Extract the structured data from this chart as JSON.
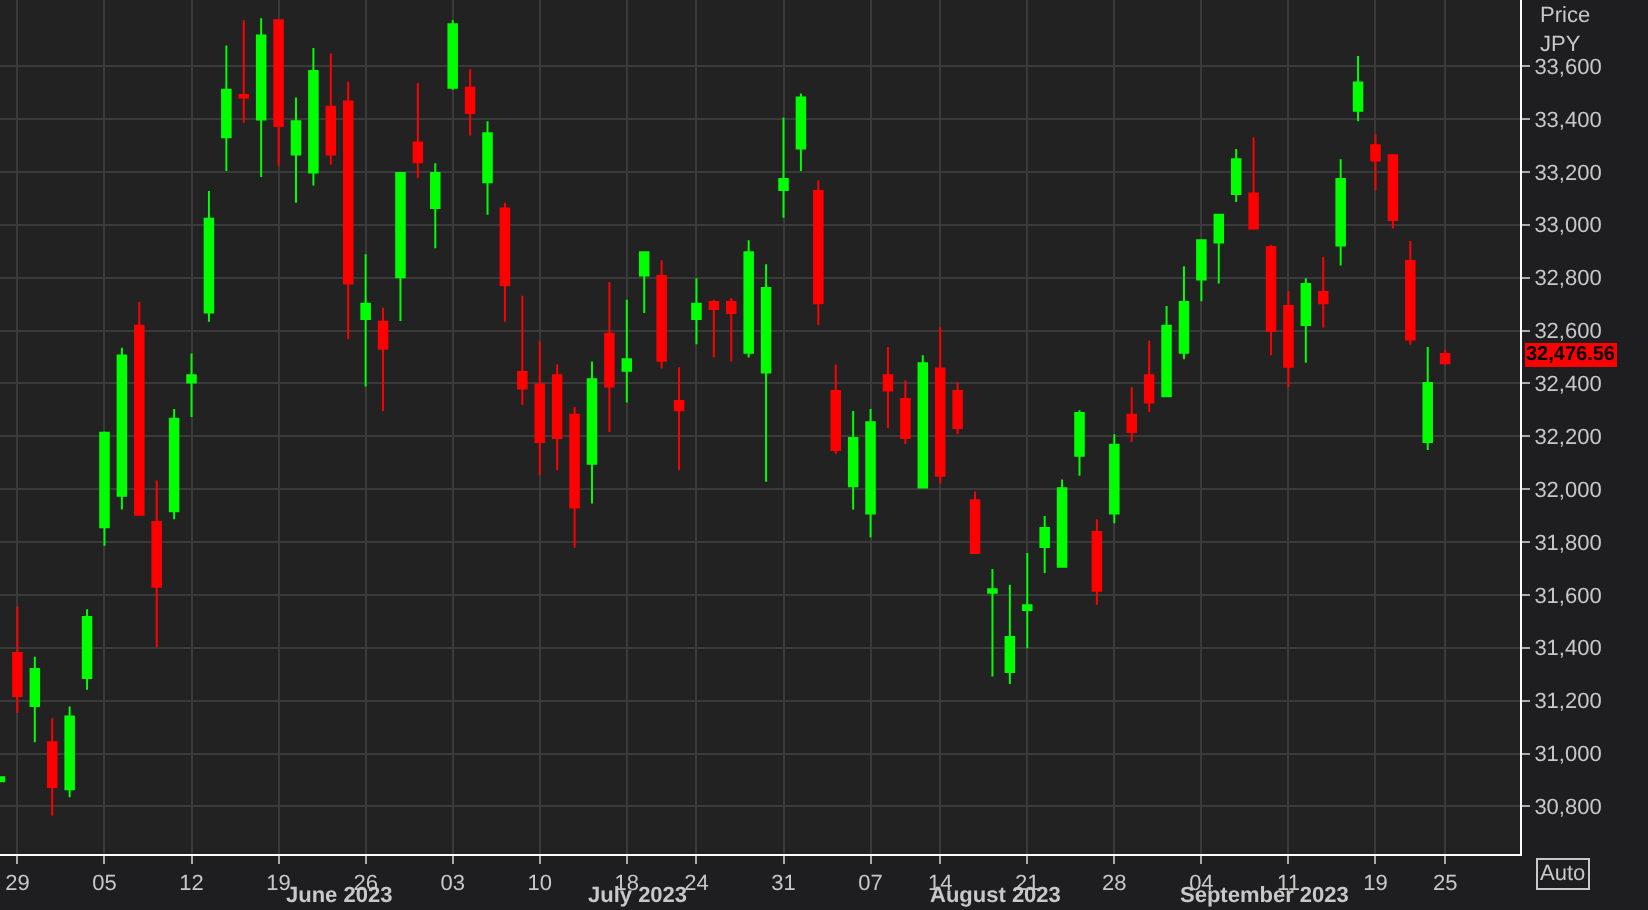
{
  "chart_data": {
    "type": "candlestick",
    "ylabel": "Price JPY",
    "categories": [
      null,
      "29",
      null,
      null,
      null,
      null,
      "05",
      null,
      null,
      null,
      null,
      "12",
      null,
      null,
      null,
      null,
      "19",
      null,
      null,
      null,
      null,
      "26",
      null,
      null,
      null,
      null,
      "03",
      null,
      null,
      null,
      null,
      "10",
      null,
      null,
      null,
      null,
      "18",
      null,
      null,
      null,
      "24",
      null,
      null,
      null,
      null,
      "31",
      null,
      null,
      null,
      null,
      "07",
      null,
      null,
      null,
      "14",
      null,
      null,
      null,
      null,
      "21",
      null,
      null,
      null,
      null,
      "28",
      null,
      null,
      null,
      null,
      "04",
      null,
      null,
      null,
      null,
      "11",
      null,
      null,
      null,
      null,
      "19",
      null,
      null,
      null,
      "25"
    ],
    "ohlc": [
      [
        30895,
        30910,
        30895,
        30910
      ],
      [
        31380,
        31556,
        31153,
        31218
      ],
      [
        31180,
        31366,
        31043,
        31320
      ],
      [
        31043,
        31133,
        30766,
        30873
      ],
      [
        30865,
        31178,
        30835,
        31140
      ],
      [
        31286,
        31546,
        31241,
        31516
      ],
      [
        31856,
        32218,
        31786,
        32213
      ],
      [
        31975,
        32535,
        31923,
        32505
      ],
      [
        32618,
        32708,
        31903,
        31903
      ],
      [
        31876,
        32033,
        31403,
        31631
      ],
      [
        31916,
        32303,
        31886,
        32266
      ],
      [
        32403,
        32513,
        32273,
        32431
      ],
      [
        32668,
        33128,
        32633,
        33023
      ],
      [
        33331,
        33678,
        33203,
        33511
      ],
      [
        33491,
        33773,
        33386,
        33481
      ],
      [
        33398,
        33781,
        33181,
        33716
      ],
      [
        33773,
        33773,
        33223,
        33373
      ],
      [
        33266,
        33481,
        33083,
        33391
      ],
      [
        33198,
        33668,
        33148,
        33581
      ],
      [
        33446,
        33648,
        33228,
        33266
      ],
      [
        33466,
        33541,
        32568,
        32778
      ],
      [
        32643,
        32888,
        32388,
        32701
      ],
      [
        32633,
        32686,
        32296,
        32531
      ],
      [
        32801,
        33196,
        32636,
        33196
      ],
      [
        33311,
        33536,
        33178,
        33236
      ],
      [
        33063,
        33233,
        32911,
        33196
      ],
      [
        33518,
        33773,
        33511,
        33758
      ],
      [
        33518,
        33588,
        33338,
        33423
      ],
      [
        33161,
        33391,
        33038,
        33346
      ],
      [
        33061,
        33083,
        32633,
        32771
      ],
      [
        32443,
        32731,
        32318,
        32381
      ],
      [
        32396,
        32558,
        32053,
        32178
      ],
      [
        32431,
        32471,
        32071,
        32193
      ],
      [
        32281,
        32311,
        31778,
        31931
      ],
      [
        32096,
        32483,
        31946,
        32416
      ],
      [
        32588,
        32783,
        32216,
        32388
      ],
      [
        32448,
        32716,
        32328,
        32491
      ],
      [
        32808,
        32896,
        32666,
        32896
      ],
      [
        32806,
        32866,
        32456,
        32486
      ],
      [
        32333,
        32461,
        32071,
        32298
      ],
      [
        32643,
        32798,
        32548,
        32701
      ],
      [
        32708,
        32716,
        32498,
        32681
      ],
      [
        32708,
        32723,
        32483,
        32666
      ],
      [
        32516,
        32941,
        32498,
        32896
      ],
      [
        32441,
        32851,
        32028,
        32761
      ],
      [
        33131,
        33406,
        33026,
        33173
      ],
      [
        33288,
        33496,
        33203,
        33481
      ],
      [
        33128,
        33168,
        32621,
        32703
      ],
      [
        32371,
        32471,
        32133,
        32148
      ],
      [
        32011,
        32296,
        31923,
        32193
      ],
      [
        31908,
        32303,
        31818,
        32253
      ],
      [
        32431,
        32538,
        32231,
        32373
      ],
      [
        32341,
        32411,
        32171,
        32193
      ],
      [
        32006,
        32506,
        32006,
        32476
      ],
      [
        32456,
        32613,
        32021,
        32051
      ],
      [
        32371,
        32403,
        32208,
        32231
      ],
      [
        31958,
        31991,
        31758,
        31758
      ],
      [
        31608,
        31698,
        31291,
        31621
      ],
      [
        31308,
        31638,
        31263,
        31441
      ],
      [
        31543,
        31758,
        31398,
        31561
      ],
      [
        31781,
        31898,
        31683,
        31853
      ],
      [
        31706,
        32036,
        31706,
        32003
      ],
      [
        32126,
        32298,
        32051,
        32288
      ],
      [
        31838,
        31886,
        31563,
        31616
      ],
      [
        31908,
        32208,
        31871,
        32168
      ],
      [
        32281,
        32386,
        32178,
        32216
      ],
      [
        32431,
        32561,
        32293,
        32328
      ],
      [
        32351,
        32693,
        32351,
        32618
      ],
      [
        32516,
        32843,
        32491,
        32708
      ],
      [
        32793,
        32941,
        32711,
        32941
      ],
      [
        32933,
        33038,
        32778,
        33038
      ],
      [
        33116,
        33286,
        33086,
        33248
      ],
      [
        33118,
        33331,
        32981,
        32986
      ],
      [
        32916,
        32923,
        32506,
        32598
      ],
      [
        32693,
        32748,
        32386,
        32463
      ],
      [
        32621,
        32798,
        32478,
        32776
      ],
      [
        32746,
        32878,
        32611,
        32703
      ],
      [
        32921,
        33248,
        32846,
        33173
      ],
      [
        33431,
        33638,
        33391,
        33538
      ],
      [
        33301,
        33341,
        33131,
        33243
      ],
      [
        33263,
        33268,
        32986,
        33018
      ],
      [
        32863,
        32938,
        32546,
        32566
      ],
      [
        32178,
        32538,
        32148,
        32401
      ],
      [
        32511,
        32526,
        32470,
        32476.56
      ]
    ],
    "colors": [
      "#00ff00",
      "#ff0000",
      "#00ff00",
      "#ff0000",
      "#00ff00",
      "#00ff00",
      "#00ff00",
      "#00ff00",
      "#ff0000",
      "#ff0000",
      "#00ff00",
      "#00ff00",
      "#00ff00",
      "#00ff00",
      "#ff0000",
      "#00ff00",
      "#ff0000",
      "#00ff00",
      "#00ff00",
      "#ff0000",
      "#ff0000",
      "#00ff00",
      "#ff0000",
      "#00ff00",
      "#ff0000",
      "#00ff00",
      "#00ff00",
      "#ff0000",
      "#00ff00",
      "#ff0000",
      "#ff0000",
      "#ff0000",
      "#ff0000",
      "#ff0000",
      "#00ff00",
      "#ff0000",
      "#00ff00",
      "#00ff00",
      "#ff0000",
      "#ff0000",
      "#00ff00",
      "#ff0000",
      "#ff0000",
      "#00ff00",
      "#00ff00",
      "#00ff00",
      "#00ff00",
      "#ff0000",
      "#ff0000",
      "#00ff00",
      "#00ff00",
      "#ff0000",
      "#ff0000",
      "#00ff00",
      "#ff0000",
      "#ff0000",
      "#ff0000",
      "#00ff00",
      "#00ff00",
      "#00ff00",
      "#00ff00",
      "#00ff00",
      "#00ff00",
      "#ff0000",
      "#00ff00",
      "#ff0000",
      "#ff0000",
      "#00ff00",
      "#00ff00",
      "#00ff00",
      "#00ff00",
      "#00ff00",
      "#ff0000",
      "#ff0000",
      "#ff0000",
      "#00ff00",
      "#ff0000",
      "#00ff00",
      "#00ff00",
      "#ff0000",
      "#ff0000",
      "#ff0000",
      "#00ff00",
      "#ff0000"
    ],
    "ylim": [
      30620,
      33850
    ],
    "yticks": [
      {
        "value": 30800,
        "label": "30,800"
      },
      {
        "value": 31000,
        "label": "31,000"
      },
      {
        "value": 31200,
        "label": "31,200"
      },
      {
        "value": 31400,
        "label": "31,400"
      },
      {
        "value": 31600,
        "label": "31,600"
      },
      {
        "value": 31800,
        "label": "31,800"
      },
      {
        "value": 32000,
        "label": "32,000"
      },
      {
        "value": 32200,
        "label": "32,200"
      },
      {
        "value": 32400,
        "label": "32,400"
      },
      {
        "value": 32600,
        "label": "32,600"
      },
      {
        "value": 32800,
        "label": "32,800"
      },
      {
        "value": 33000,
        "label": "33,000"
      },
      {
        "value": 33200,
        "label": "33,200"
      },
      {
        "value": 33400,
        "label": "33,400"
      },
      {
        "value": 33600,
        "label": "33,600"
      }
    ],
    "grid": true,
    "annotations": [
      "June 2023",
      "July 2023",
      "August 2023",
      "September 2023",
      "Auto",
      "32,476.56"
    ]
  }
}
